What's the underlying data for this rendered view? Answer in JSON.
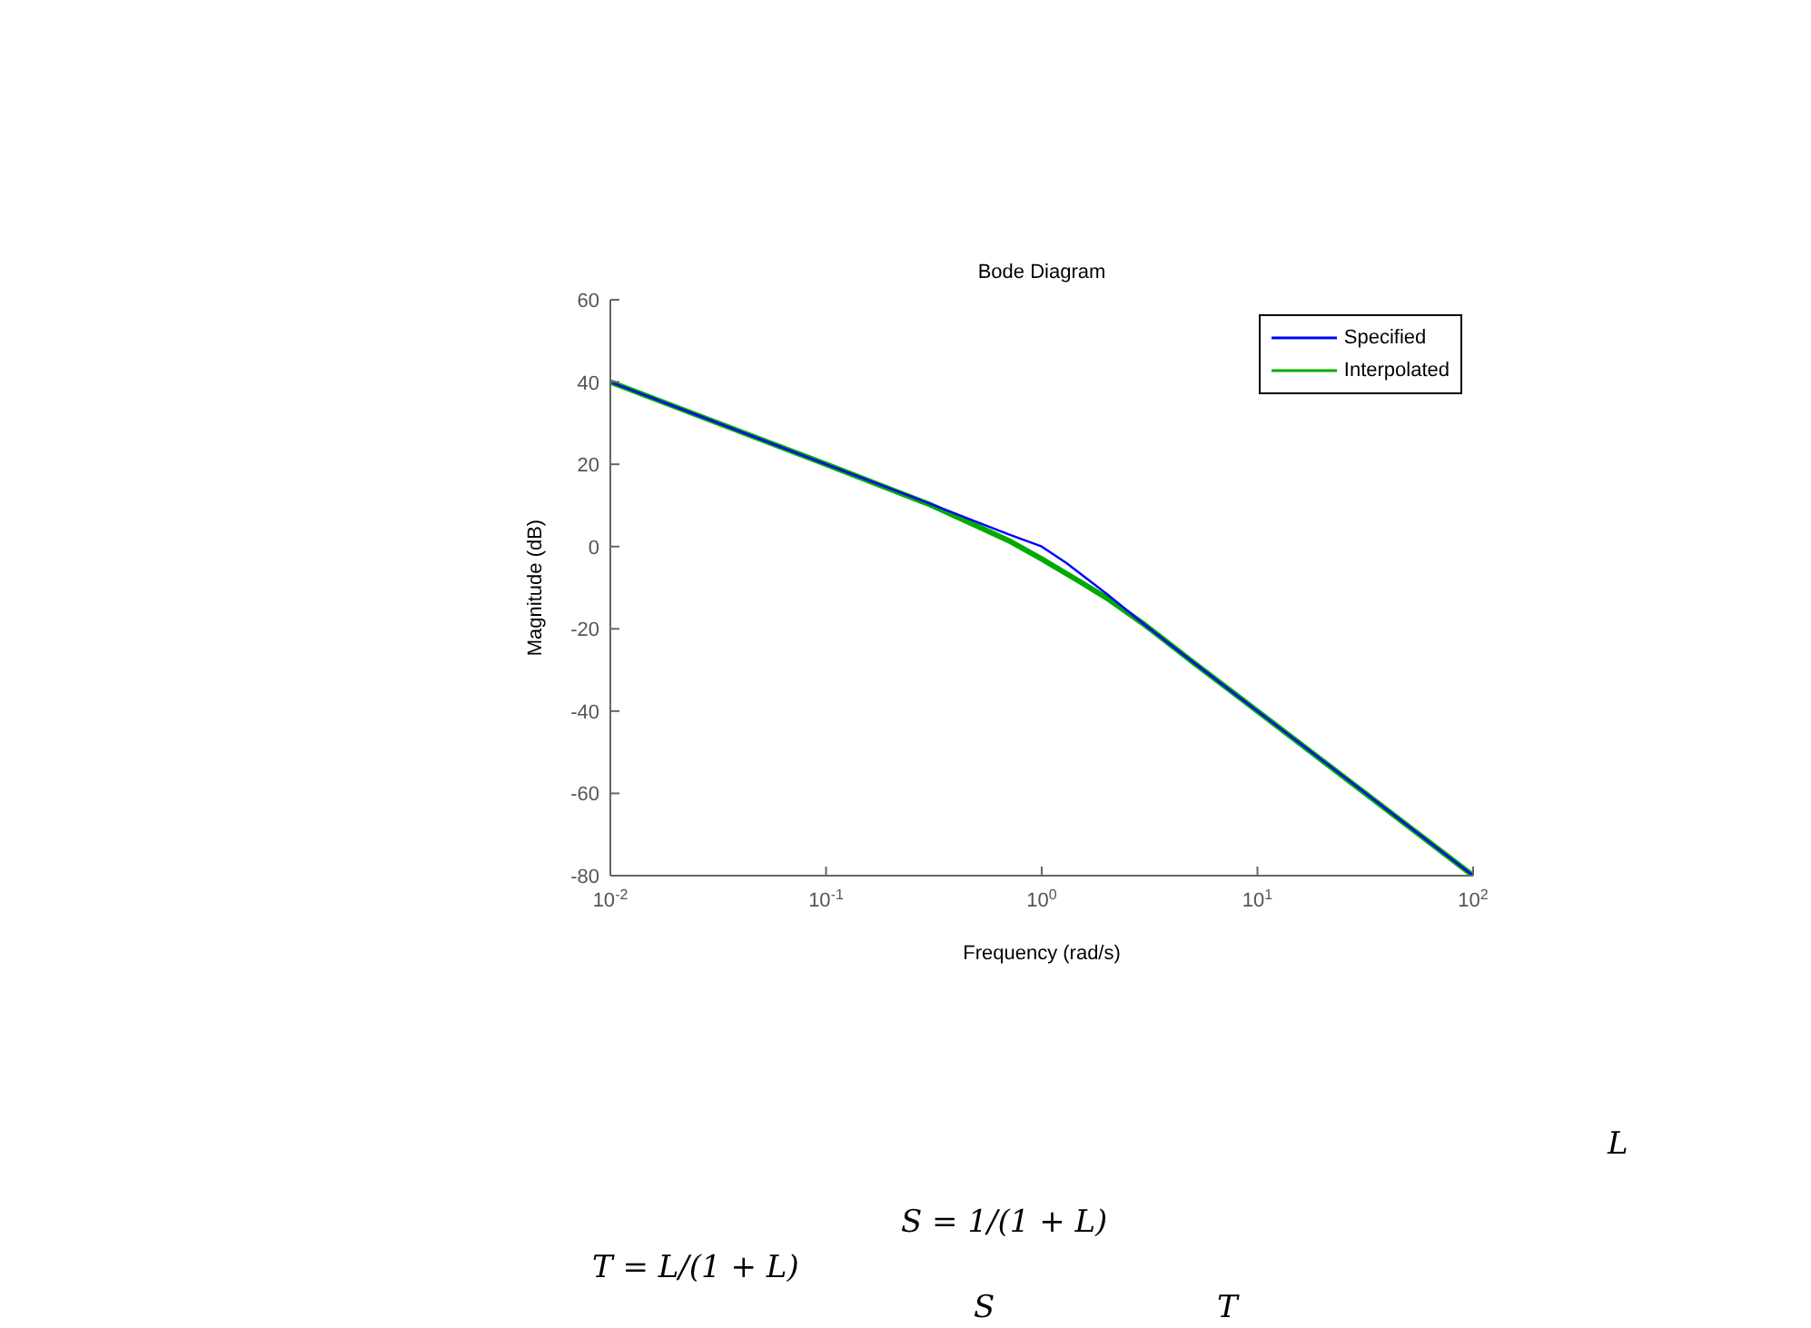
{
  "chart_data": {
    "type": "line",
    "title": "Bode Diagram",
    "xlabel": "Frequency  (rad/s)",
    "ylabel": "Magnitude (dB)",
    "log": "x",
    "grid": false,
    "legend": "top right",
    "marker": "none",
    "line_style": "solid",
    "xlim": [
      0.01,
      100
    ],
    "xticks": [
      {
        "value": 0.01,
        "label": "10$^{-2}$"
      },
      {
        "value": 0.1,
        "label": "10$^{-1}$"
      },
      {
        "value": 1,
        "label": "10$^{0}$"
      },
      {
        "value": 10,
        "label": "10$^{1}$"
      },
      {
        "value": 100,
        "label": "10$^{2}$"
      }
    ],
    "ylim": [
      -80,
      60
    ],
    "yticks": [
      -80,
      -60,
      -40,
      -20,
      0,
      20,
      40,
      60
    ],
    "series": [
      {
        "name": "Specified",
        "color": "#0000ff",
        "x": [
          0.01,
          0.1,
          0.3,
          0.5,
          0.7,
          1,
          1.3,
          2,
          3,
          5,
          10,
          30,
          100
        ],
        "values": [
          40,
          20,
          10.5,
          6,
          3,
          0,
          -4,
          -11.5,
          -19,
          -28,
          -40,
          -59,
          -80
        ]
      },
      {
        "name": "Interpolated",
        "color": "#00aa00",
        "x": [
          0.01,
          0.1,
          0.3,
          0.5,
          0.7,
          1,
          1.5,
          2,
          3,
          5,
          10,
          100
        ],
        "values": [
          40,
          20,
          10.3,
          5,
          1.5,
          -3,
          -8.5,
          -12.5,
          -19,
          -28,
          -40,
          -80
        ]
      }
    ],
    "annotations": [
      "L",
      "S = 1/(1 + L)",
      "T = L/(1 + L)",
      "S",
      "T"
    ]
  }
}
